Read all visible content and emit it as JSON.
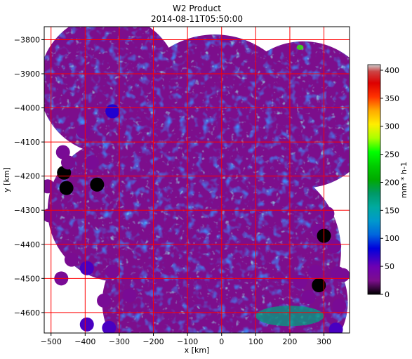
{
  "chart_data": {
    "type": "heatmap",
    "title": "W2 Product",
    "subtitle": "2014-08-11T05:50:00",
    "xlabel": "x [km]",
    "ylabel": "y [km]",
    "xlim": [
      -520,
      375
    ],
    "ylim": [
      -4660,
      -3762
    ],
    "xticks": [
      -500,
      -400,
      -300,
      -200,
      -100,
      0,
      100,
      200,
      300
    ],
    "xtick_labels": [
      "−500",
      "−400",
      "−300",
      "−200",
      "−100",
      "0",
      "100",
      "200",
      "300"
    ],
    "yticks": [
      -3800,
      -3900,
      -4000,
      -4100,
      -4200,
      -4300,
      -4400,
      -4500,
      -4600
    ],
    "ytick_labels": [
      "−3800",
      "−3900",
      "−4000",
      "−4100",
      "−4200",
      "−4300",
      "−4400",
      "−4500",
      "−4600"
    ],
    "grid": true,
    "grid_color": "#ff0000",
    "colorbar": {
      "label": "mm * h-1",
      "range": [
        0,
        410
      ],
      "ticks": [
        0,
        50,
        100,
        150,
        200,
        250,
        300,
        350,
        400
      ],
      "tick_labels": [
        "0",
        "50",
        "100",
        "150",
        "200",
        "250",
        "300",
        "350",
        "400"
      ],
      "colormap": "nipy_spectral"
    },
    "field": {
      "dominant_value_range": [
        15,
        40
      ],
      "dominant_color": "#7c0e8c",
      "high_value_areas": [
        {
          "region": "south-east",
          "x": [
            100,
            300
          ],
          "y": [
            -4640,
            -4580
          ],
          "approx_value": 170
        },
        {
          "region": "north-east",
          "x": [
            220,
            240
          ],
          "y": [
            -3830,
            -3815
          ],
          "approx_value": 260
        }
      ]
    },
    "radar_circles": [
      {
        "cx": -330,
        "cy": -3930,
        "r": 205
      },
      {
        "cx": -20,
        "cy": -4040,
        "r": 255
      },
      {
        "cx": 240,
        "cy": -4020,
        "r": 215
      },
      {
        "cx": -300,
        "cy": -4300,
        "r": 210
      },
      {
        "cx": 90,
        "cy": -4420,
        "r": 260
      },
      {
        "cx": -150,
        "cy": -4570,
        "r": 200
      },
      {
        "cx": 180,
        "cy": -4570,
        "r": 190
      }
    ],
    "outer_markers": [
      {
        "x": -510,
        "y": -4230,
        "v": 28
      },
      {
        "x": -505,
        "y": -4315,
        "v": 28
      },
      {
        "x": -465,
        "y": -4130,
        "v": 30
      },
      {
        "x": -462,
        "y": -4190,
        "v": 0
      },
      {
        "x": -455,
        "y": -4235,
        "v": 0
      },
      {
        "x": -450,
        "y": -4160,
        "v": 28
      },
      {
        "x": -440,
        "y": -4445,
        "v": 28
      },
      {
        "x": -470,
        "y": -4500,
        "v": 30
      },
      {
        "x": -405,
        "y": -4070,
        "v": 30
      },
      {
        "x": -395,
        "y": -4470,
        "v": 60
      },
      {
        "x": -395,
        "y": -4635,
        "v": 60
      },
      {
        "x": -380,
        "y": -4160,
        "v": 30
      },
      {
        "x": -365,
        "y": -4225,
        "v": 0
      },
      {
        "x": -345,
        "y": -4565,
        "v": 30
      },
      {
        "x": -320,
        "y": -4010,
        "v": 72
      },
      {
        "x": -320,
        "y": -4480,
        "v": 30
      },
      {
        "x": -330,
        "y": -4645,
        "v": 60
      },
      {
        "x": -270,
        "y": -4550,
        "v": 30
      },
      {
        "x": 230,
        "y": -4510,
        "v": 30
      },
      {
        "x": 255,
        "y": -4555,
        "v": 30
      },
      {
        "x": 275,
        "y": -4480,
        "v": 30
      },
      {
        "x": 285,
        "y": -4360,
        "v": 30
      },
      {
        "x": 285,
        "y": -4520,
        "v": 0
      },
      {
        "x": 300,
        "y": -4375,
        "v": 0
      },
      {
        "x": 310,
        "y": -4310,
        "v": 30
      },
      {
        "x": 330,
        "y": -4405,
        "v": 30
      },
      {
        "x": 340,
        "y": -4485,
        "v": 30
      },
      {
        "x": 345,
        "y": -4580,
        "v": 30
      },
      {
        "x": 335,
        "y": -4650,
        "v": 60
      },
      {
        "x": 355,
        "y": -4490,
        "v": 30
      }
    ]
  }
}
